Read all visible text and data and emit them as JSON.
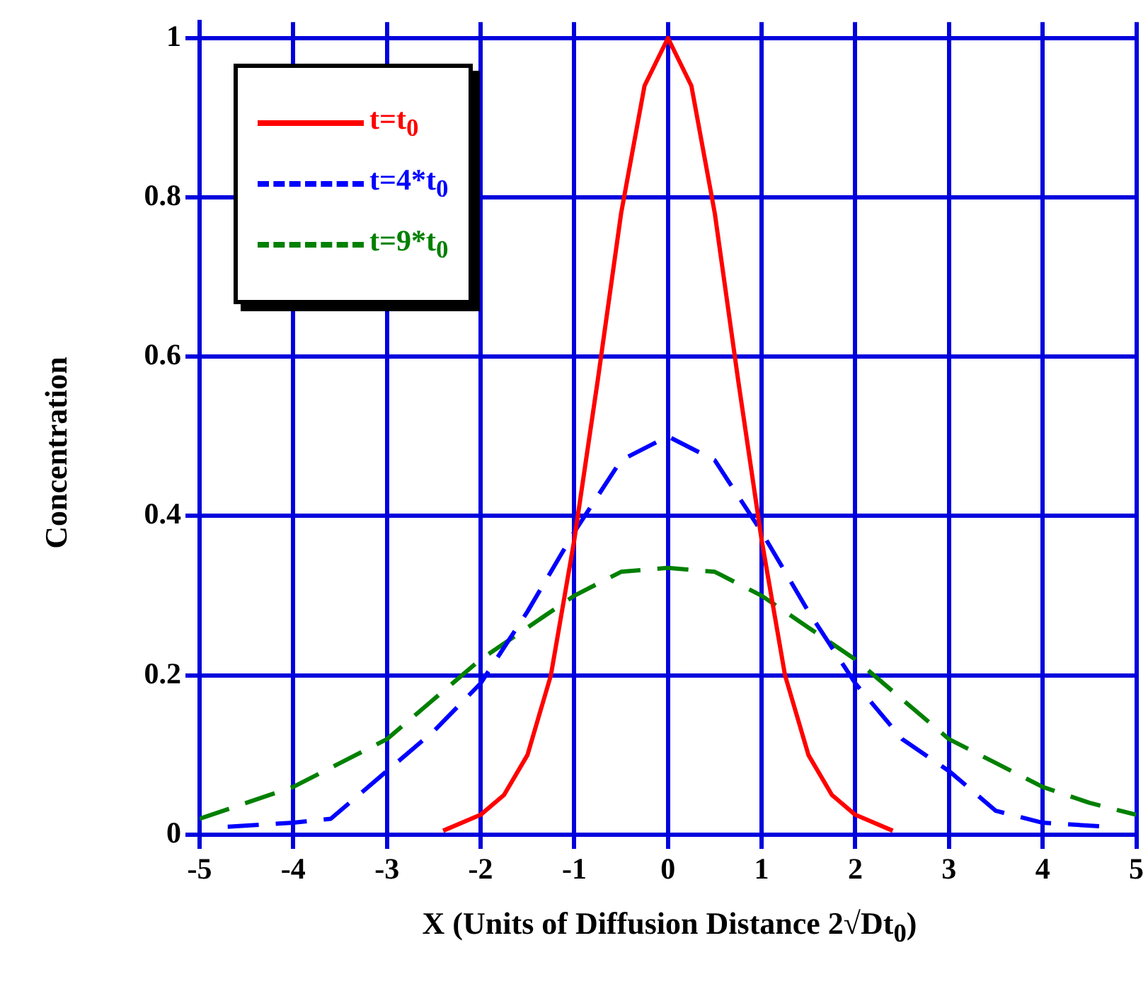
{
  "chart_data": {
    "type": "line",
    "xlabel": "X (Units of Diffusion Distance 2√Dt$_{0}$)",
    "ylabel": "Concentration",
    "xlim": [
      -5,
      5
    ],
    "xticks": [
      -5,
      -4,
      -3,
      -2,
      -1,
      0,
      1,
      2,
      3,
      4,
      5
    ],
    "ylim": [
      0,
      1.02
    ],
    "yticks": [
      0,
      0.2,
      0.4,
      0.6,
      0.8,
      1
    ],
    "grid": true,
    "legend": "top left",
    "marker": "none",
    "series": [
      {
        "name": "t=t$_{0}$",
        "color": "#ff0000",
        "line_style": "solid",
        "x": [
          -2.4,
          -2,
          -1.75,
          -1.5,
          -1.25,
          -1,
          -0.75,
          -0.5,
          -0.25,
          0,
          0.25,
          0.5,
          0.75,
          1,
          1.25,
          1.5,
          1.75,
          2,
          2.4
        ],
        "values": [
          0.005,
          0.025,
          0.05,
          0.1,
          0.2,
          0.37,
          0.57,
          0.78,
          0.94,
          1,
          0.94,
          0.78,
          0.57,
          0.37,
          0.2,
          0.1,
          0.05,
          0.025,
          0.005
        ]
      },
      {
        "name": "t=4*t$_{0}$",
        "color": "#0000ff",
        "line_style": "dashed",
        "x": [
          -4.7,
          -4,
          -3.6,
          -3,
          -2.5,
          -2,
          -1.5,
          -1,
          -0.5,
          0,
          0.5,
          1,
          1.5,
          2,
          2.5,
          3,
          3.5,
          4,
          4.7
        ],
        "values": [
          0.01,
          0.015,
          0.02,
          0.08,
          0.13,
          0.19,
          0.28,
          0.38,
          0.47,
          0.5,
          0.47,
          0.38,
          0.28,
          0.19,
          0.12,
          0.08,
          0.03,
          0.015,
          0.01
        ]
      },
      {
        "name": "t=9*t$_{0}$",
        "color": "#008000",
        "line_style": "dashed",
        "x": [
          -5,
          -4.5,
          -4,
          -3.5,
          -3,
          -2.5,
          -2,
          -1.5,
          -1,
          -0.5,
          0,
          0.5,
          1,
          1.5,
          2,
          2.5,
          3,
          3.5,
          4,
          4.5,
          5
        ],
        "values": [
          0.02,
          0.04,
          0.06,
          0.09,
          0.12,
          0.17,
          0.22,
          0.26,
          0.3,
          0.33,
          0.335,
          0.33,
          0.3,
          0.26,
          0.22,
          0.17,
          0.12,
          0.09,
          0.06,
          0.04,
          0.025
        ]
      }
    ]
  }
}
